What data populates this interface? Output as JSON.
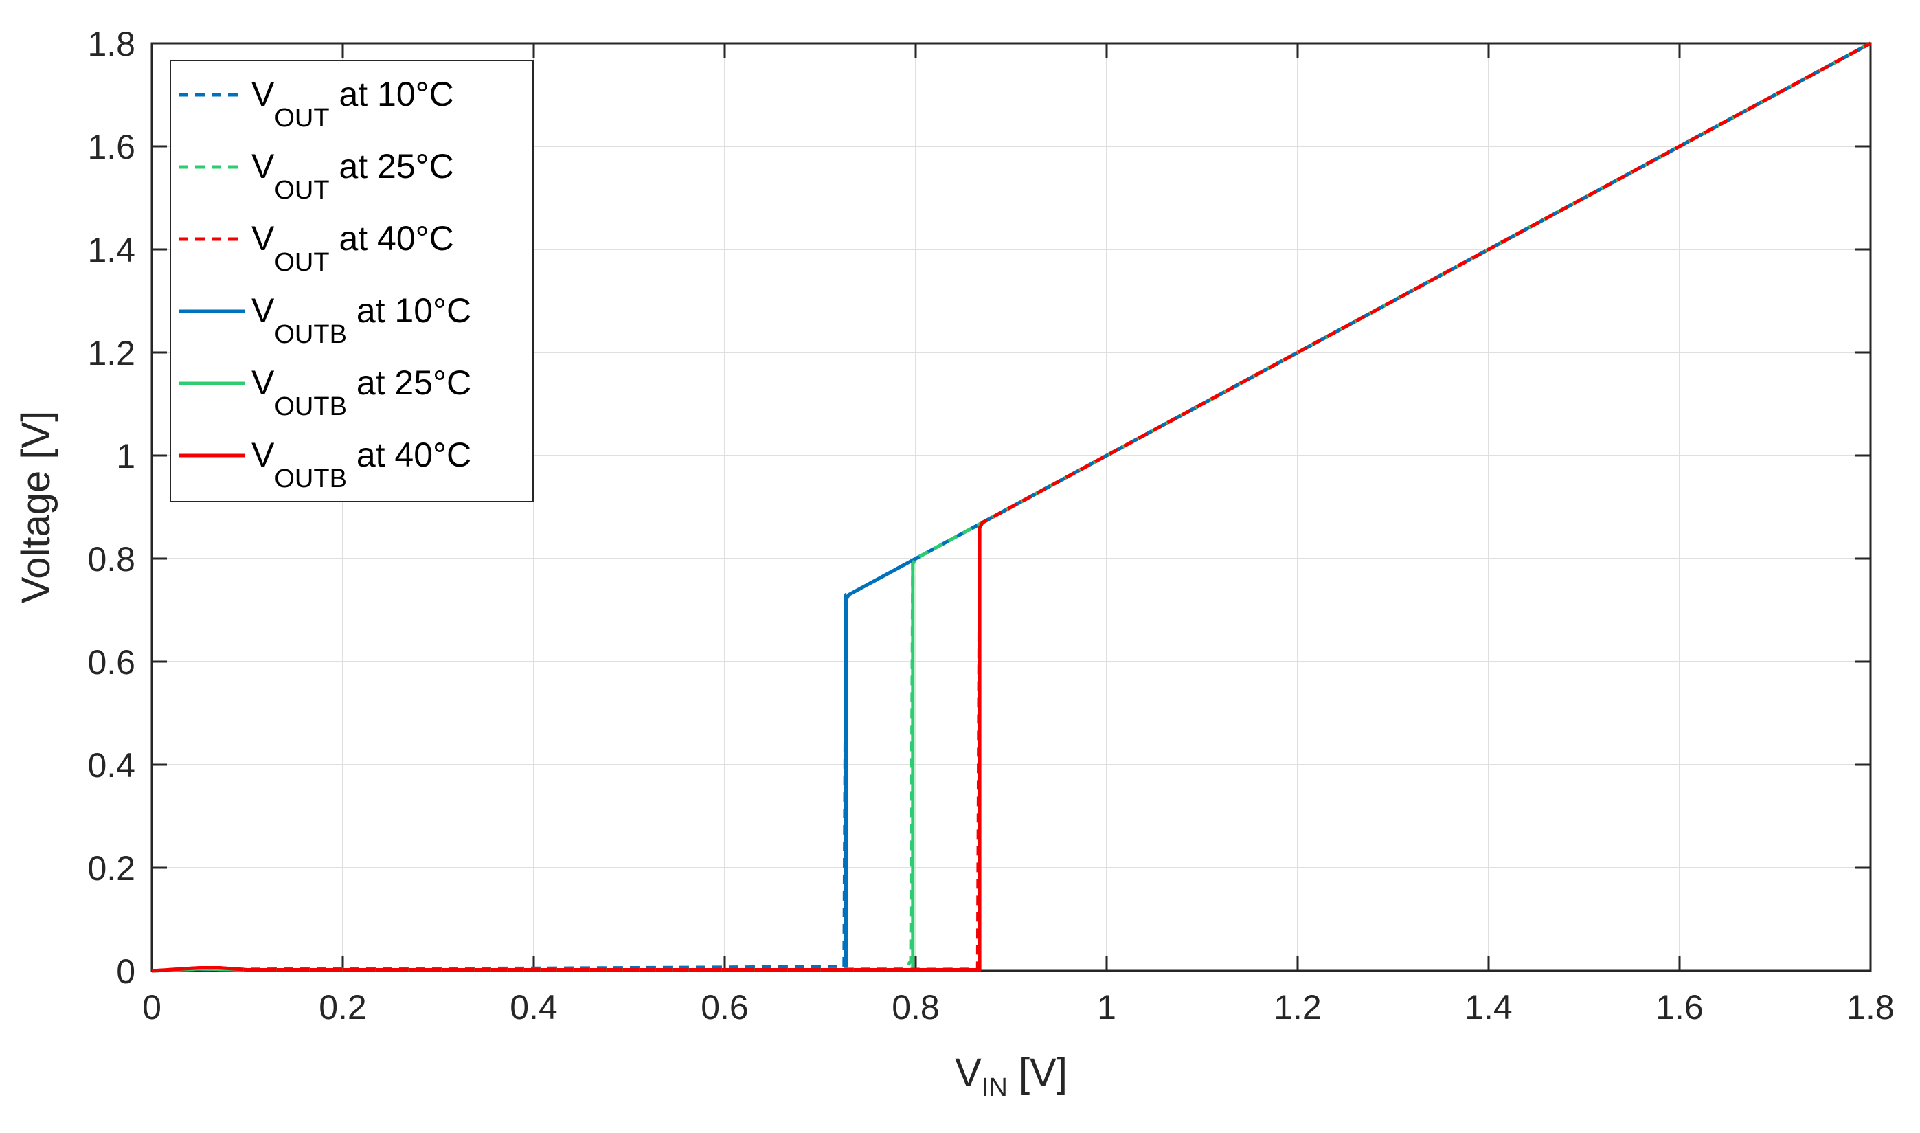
{
  "chart_data": {
    "type": "line",
    "xlabel": {
      "main": "V",
      "sub": "IN",
      "unit": " [V]"
    },
    "ylabel": "Voltage [V]",
    "xlim": [
      0,
      1.8
    ],
    "ylim": [
      0,
      1.8
    ],
    "xticks": [
      0,
      0.2,
      0.4,
      0.6,
      0.8,
      1,
      1.2,
      1.4,
      1.6,
      1.8
    ],
    "xtick_labels": [
      "0",
      "0.2",
      "0.4",
      "0.6",
      "0.8",
      "1",
      "1.2",
      "1.4",
      "1.6",
      "1.8"
    ],
    "yticks": [
      0,
      0.2,
      0.4,
      0.6,
      0.8,
      1,
      1.2,
      1.4,
      1.6,
      1.8
    ],
    "ytick_labels": [
      "0",
      "0.2",
      "0.4",
      "0.6",
      "0.8",
      "1",
      "1.2",
      "1.4",
      "1.6",
      "1.8"
    ],
    "grid": true,
    "legend_position": "top-left",
    "series": [
      {
        "label_main": "V",
        "label_sub": "OUT",
        "label_rest": " at 10°C",
        "color": "#0072BD",
        "style": "dashed",
        "x": [
          0,
          0.05,
          0.1,
          0.2,
          0.4,
          0.6,
          0.7,
          0.725,
          0.727,
          0.73,
          0.79,
          0.8,
          0.87,
          1.0,
          1.2,
          1.4,
          1.6,
          1.8
        ],
        "y": [
          0,
          0.003,
          0.003,
          0.004,
          0.005,
          0.007,
          0.008,
          0.008,
          0.73,
          0.73,
          0.79,
          0.8,
          0.87,
          1.0,
          1.2,
          1.4,
          1.6,
          1.8
        ]
      },
      {
        "label_main": "V",
        "label_sub": "OUT",
        "label_rest": " at 25°C",
        "color": "#2ECC71",
        "style": "dashed",
        "x": [
          0,
          0.05,
          0.1,
          0.4,
          0.7,
          0.79,
          0.795,
          0.797,
          0.8,
          0.87,
          1.0,
          1.2,
          1.4,
          1.6,
          1.8
        ],
        "y": [
          0,
          0.004,
          0.002,
          0.002,
          0.002,
          0.005,
          0.02,
          0.79,
          0.8,
          0.87,
          1.0,
          1.2,
          1.4,
          1.6,
          1.8
        ]
      },
      {
        "label_main": "V",
        "label_sub": "OUT",
        "label_rest": " at 40°C",
        "color": "#F40000",
        "style": "dashed",
        "x": [
          0,
          0.05,
          0.07,
          0.1,
          0.4,
          0.7,
          0.865,
          0.867,
          0.87,
          1.0,
          1.2,
          1.4,
          1.6,
          1.8
        ],
        "y": [
          0,
          0.006,
          0.006,
          0.002,
          0.002,
          0.002,
          0.003,
          0.86,
          0.87,
          1.0,
          1.2,
          1.4,
          1.6,
          1.8
        ]
      },
      {
        "label_main": "V",
        "label_sub": "OUTB",
        "label_rest": " at 10°C",
        "color": "#0072BD",
        "style": "solid",
        "x": [
          0,
          0.05,
          0.1,
          0.4,
          0.7,
          0.727,
          0.727,
          0.73,
          0.79,
          0.8,
          0.87,
          1.0,
          1.2,
          1.4,
          1.6,
          1.8
        ],
        "y": [
          0,
          0.004,
          0.002,
          0.002,
          0.002,
          0.002,
          0.72,
          0.73,
          0.79,
          0.8,
          0.87,
          1.0,
          1.2,
          1.4,
          1.6,
          1.8
        ]
      },
      {
        "label_main": "V",
        "label_sub": "OUTB",
        "label_rest": " at 25°C",
        "color": "#2ECC71",
        "style": "solid",
        "x": [
          0,
          0.05,
          0.1,
          0.4,
          0.7,
          0.797,
          0.797,
          0.8,
          0.87,
          1.0,
          1.2,
          1.4,
          1.6,
          1.8
        ],
        "y": [
          0,
          0.004,
          0.002,
          0.002,
          0.002,
          0.002,
          0.79,
          0.8,
          0.87,
          1.0,
          1.2,
          1.4,
          1.6,
          1.8
        ]
      },
      {
        "label_main": "V",
        "label_sub": "OUTB",
        "label_rest": " at 40°C",
        "color": "#F40000",
        "style": "solid",
        "x": [
          0,
          0.05,
          0.07,
          0.1,
          0.4,
          0.7,
          0.867,
          0.867,
          0.87,
          1.0,
          1.2,
          1.4,
          1.6,
          1.8
        ],
        "y": [
          0,
          0.006,
          0.006,
          0.002,
          0.002,
          0.002,
          0.002,
          0.86,
          0.87,
          1.0,
          1.2,
          1.4,
          1.6,
          1.8
        ]
      }
    ]
  }
}
